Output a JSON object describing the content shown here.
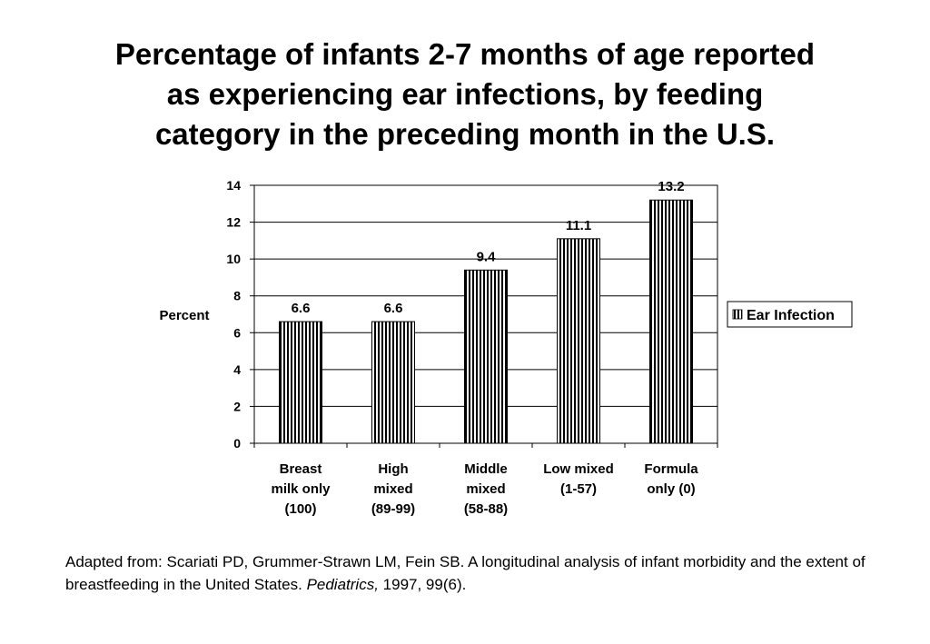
{
  "title": {
    "lines": [
      "Percentage of infants 2-7 months of age reported",
      "as experiencing ear infections, by feeding",
      "category in the preceding month in the U.S."
    ]
  },
  "chart_data": {
    "type": "bar",
    "title": "Percentage of infants 2-7 months of age reported as experiencing ear infections, by feeding category in the preceding month in the U.S.",
    "ylabel": "Percent",
    "xlabel": "",
    "ylim": [
      0,
      14
    ],
    "yticks": [
      "0",
      "2",
      "4",
      "6",
      "8",
      "10",
      "12",
      "14"
    ],
    "grid": true,
    "legend_position": "right",
    "categories": [
      [
        "Breast",
        "milk only",
        "(100)"
      ],
      [
        "High",
        "mixed",
        "(89-99)"
      ],
      [
        "Middle",
        "mixed",
        "(58-88)"
      ],
      [
        "Low mixed",
        "(1-57)"
      ],
      [
        "Formula",
        "only (0)"
      ]
    ],
    "series": [
      {
        "name": "Ear Infection",
        "values": [
          6.6,
          6.6,
          9.4,
          11.1,
          13.2
        ]
      }
    ],
    "data_labels": [
      "6.6",
      "6.6",
      "9.4",
      "11.1",
      "13.2"
    ]
  },
  "citation": {
    "text": "Adapted from: Scariati PD, Grummer-Strawn LM, Fein SB. A longitudinal analysis of infant morbidity and the extent of breastfeeding in the United States. ",
    "journal": "Pediatrics,",
    "after": " 1997, 99(6)."
  }
}
